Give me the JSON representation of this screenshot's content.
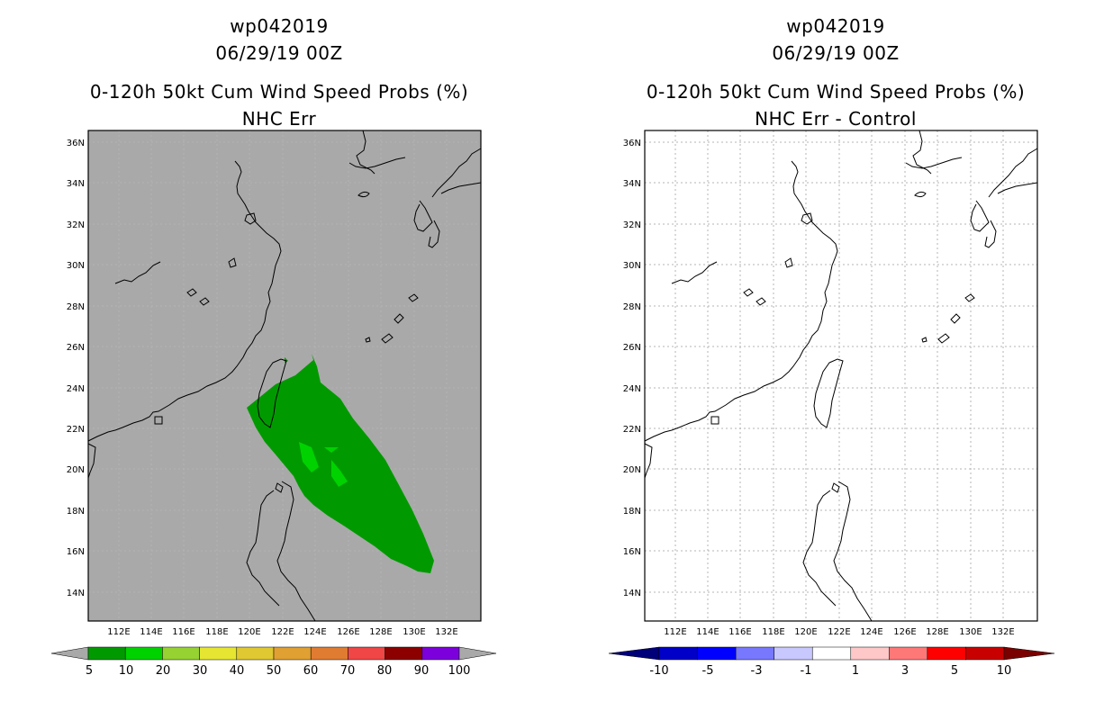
{
  "panels": [
    {
      "id": "left",
      "title_line1": "wp042019",
      "title_line2": "06/29/19 00Z",
      "title_line3": "0-120h 50kt Cum Wind Speed Probs (%)",
      "title_line4": "NHC Err",
      "colorbar_labels": [
        "5",
        "10",
        "20",
        "30",
        "40",
        "50",
        "60",
        "70",
        "80",
        "90",
        "100"
      ]
    },
    {
      "id": "right",
      "title_line1": "wp042019",
      "title_line2": "06/29/19 00Z",
      "title_line3": "0-120h 50kt Cum Wind Speed Probs (%)",
      "title_line4": "NHC Err - Control",
      "colorbar_labels": [
        "-10",
        "-5",
        "-3",
        "-1",
        "1",
        "3",
        "5",
        "10"
      ]
    }
  ],
  "axes": {
    "lon_labels": [
      "112E",
      "114E",
      "116E",
      "118E",
      "120E",
      "122E",
      "124E",
      "126E",
      "128E",
      "130E",
      "132E"
    ],
    "lat_labels": [
      "36N",
      "34N",
      "32N",
      "30N",
      "28N",
      "26N",
      "24N",
      "22N",
      "20N",
      "18N",
      "16N",
      "14N"
    ]
  },
  "colors": {
    "left_background": "#a9a9a9",
    "prob_5_10": "#009a00",
    "prob_10_20": "#00d200",
    "left_scale": [
      "#009a00",
      "#00d200",
      "#96d232",
      "#e6e632",
      "#e0c832",
      "#e0a032",
      "#e07c32",
      "#f04646",
      "#8c0000",
      "#7c00dc"
    ],
    "right_scale": [
      "#0000c8",
      "#0000ff",
      "#7878ff",
      "#c8c8ff",
      "#ffffff",
      "#ffc8c8",
      "#ff7878",
      "#ff0000",
      "#c80000"
    ]
  }
}
